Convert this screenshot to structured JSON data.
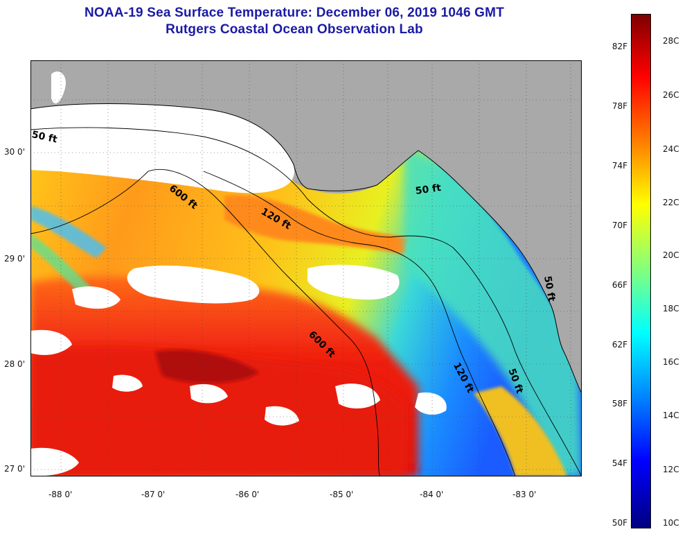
{
  "header": {
    "title": "NOAA-19 Sea Surface Temperature:  December 06, 2019 1046 GMT",
    "subtitle": "Rutgers Coastal Ocean Observation Lab"
  },
  "map": {
    "lat_labels": [
      "30 0'",
      "29 0'",
      "28 0'",
      "27 0'"
    ],
    "lon_labels": [
      "-88 0'",
      "-87 0'",
      "-86 0'",
      "-85 0'",
      "-84 0'",
      "-83 0'"
    ],
    "contour_labels": [
      "50 ft",
      "600 ft",
      "120 ft",
      "50 ft",
      "600 ft",
      "120 ft",
      "50 ft",
      "50 ft"
    ],
    "colors": {
      "land": "#a9a9a9",
      "cloud": "#ffffff"
    }
  },
  "colorbar": {
    "fahrenheit_labels": [
      "82F",
      "78F",
      "74F",
      "70F",
      "66F",
      "62F",
      "58F",
      "54F",
      "50F"
    ],
    "celsius_labels": [
      "28C",
      "26C",
      "24C",
      "22C",
      "20C",
      "18C",
      "16C",
      "14C",
      "12C",
      "10C"
    ],
    "colors": [
      "#00007f",
      "#0000ff",
      "#0080ff",
      "#00ffff",
      "#80ff80",
      "#ffff00",
      "#ff8000",
      "#ff0000",
      "#7f0000"
    ]
  }
}
